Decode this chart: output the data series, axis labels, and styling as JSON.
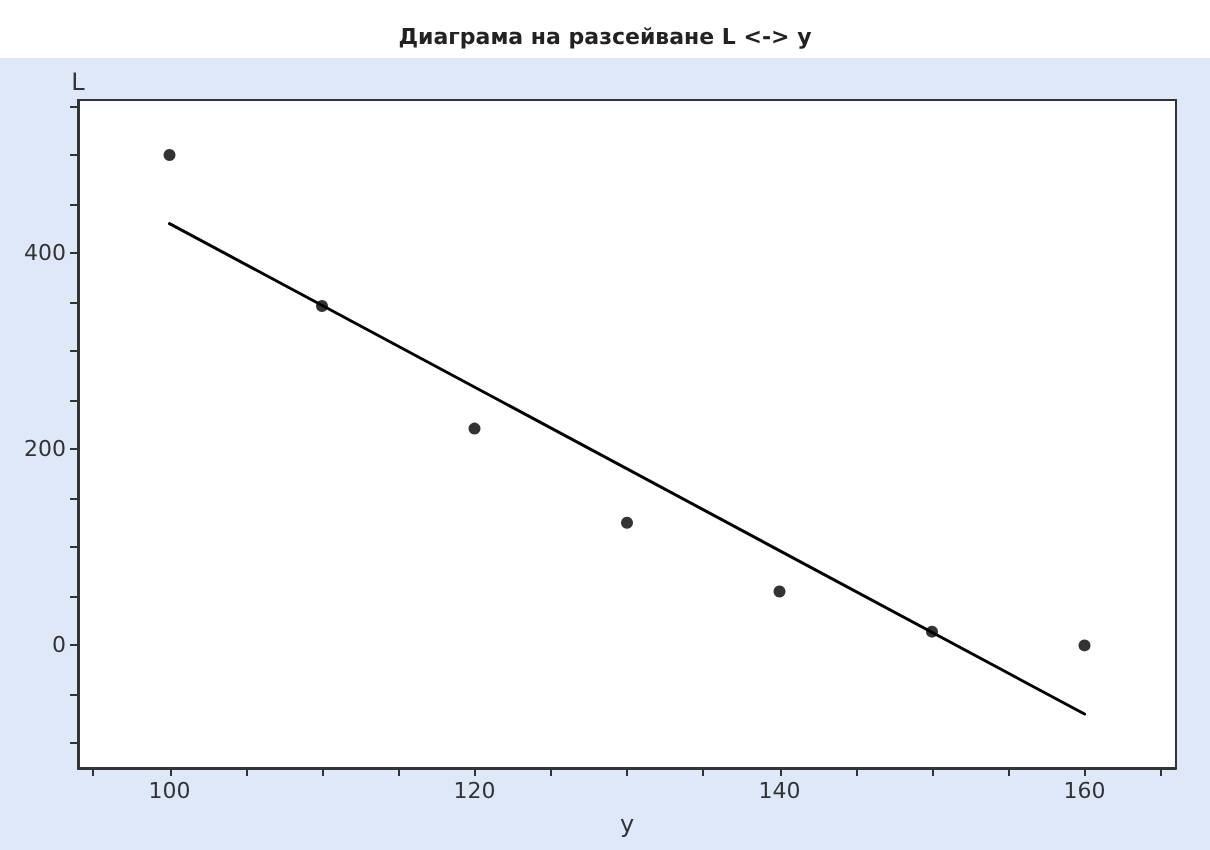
{
  "chart_data": {
    "type": "scatter",
    "title": "Диаграма на разсейване L <-> y",
    "xlabel": "y",
    "ylabel": "L",
    "series": [
      {
        "color": "#000000",
        "marker": "circle",
        "x": [
          100,
          110,
          120,
          130,
          140,
          150,
          160
        ],
        "values": [
          500,
          346,
          221,
          125,
          55,
          14,
          0
        ]
      },
      {
        "type": "line",
        "color": "#000000",
        "marker": "none",
        "x": [
          100,
          160
        ],
        "values": [
          430,
          -70
        ]
      }
    ],
    "xlim": [
      94,
      166
    ],
    "xticks": [
      {
        "value": 95,
        "label": null
      },
      100,
      {
        "value": 105,
        "label": null
      },
      {
        "value": 110,
        "label": null
      },
      {
        "value": 115,
        "label": null
      },
      120,
      {
        "value": 125,
        "label": null
      },
      {
        "value": 130,
        "label": null
      },
      {
        "value": 135,
        "label": null
      },
      140,
      {
        "value": 145,
        "label": null
      },
      {
        "value": 150,
        "label": null
      },
      {
        "value": 155,
        "label": null
      },
      160,
      {
        "value": 165,
        "label": null
      }
    ],
    "ylim": [
      -125,
      556
    ],
    "yticks": [
      {
        "value": -100,
        "label": null
      },
      {
        "value": -50,
        "label": null
      },
      0,
      {
        "value": 50,
        "label": null
      },
      {
        "value": 100,
        "label": null
      },
      {
        "value": 150,
        "label": null
      },
      200,
      {
        "value": 250,
        "label": null
      },
      {
        "value": 300,
        "label": null
      },
      {
        "value": 350,
        "label": null
      },
      400,
      {
        "value": 450,
        "label": null
      },
      {
        "value": 500,
        "label": null
      },
      {
        "value": 550,
        "label": null
      }
    ],
    "grid": false
  }
}
